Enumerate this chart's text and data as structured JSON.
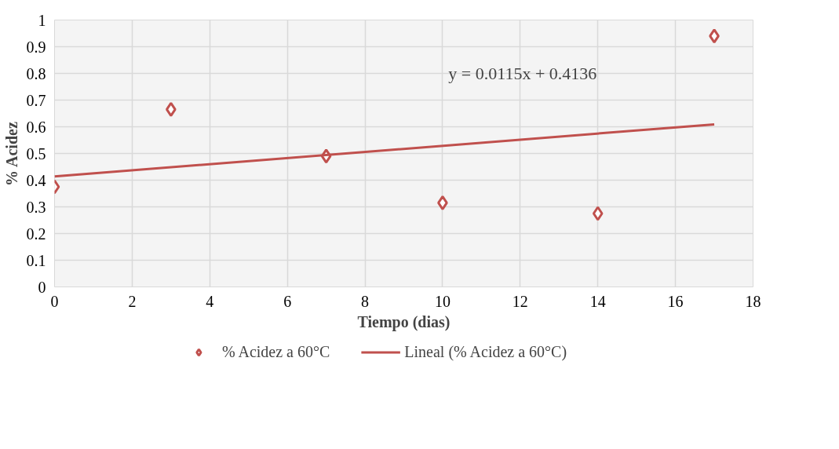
{
  "chart_data": {
    "type": "scatter",
    "xlabel": "Tiempo (dias)",
    "ylabel": "% Acidez",
    "x": [
      0,
      3,
      7,
      10,
      14,
      17
    ],
    "series": [
      {
        "name": "% Acidez a 60°C",
        "color": "#c0504d",
        "marker": "diamond",
        "values": [
          0.375,
          0.665,
          0.49,
          0.315,
          0.275,
          0.94
        ]
      },
      {
        "name": "Lineal (% Acidez a 60°C)",
        "type": "line",
        "color": "#c0504d",
        "line_style": "solid",
        "x": [
          0,
          17
        ],
        "values": [
          0.414,
          0.609
        ]
      }
    ],
    "xlim": [
      0,
      18
    ],
    "xticks": [
      0,
      2,
      4,
      6,
      8,
      10,
      12,
      14,
      16,
      18
    ],
    "ylim": [
      0,
      1
    ],
    "yticks": [
      0,
      0.1,
      0.2,
      0.3,
      0.4,
      0.5,
      0.6,
      0.7,
      0.8,
      0.9,
      1
    ],
    "annotations": [
      "y = 0.0115x + 0.4136"
    ],
    "grid": true,
    "legend": "bottom"
  }
}
